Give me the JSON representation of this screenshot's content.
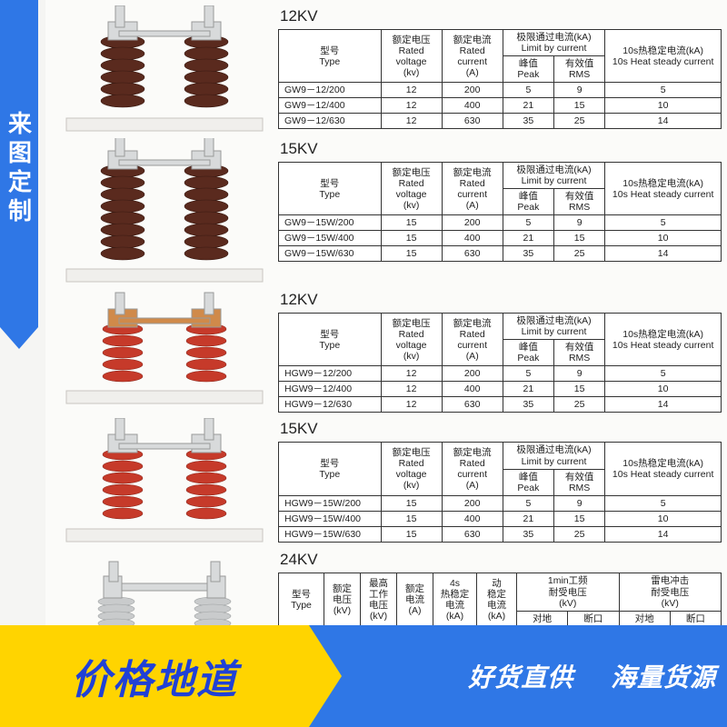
{
  "ribbon": {
    "text": "来图定制"
  },
  "palette": {
    "banner_yellow": "#ffd400",
    "banner_blue": "#2f77e6",
    "banner_text_blue": "#2041d6",
    "insulator_brown": "#5a2a1e",
    "insulator_red": "#c63a2a",
    "insulator_grey": "#c9cbcc",
    "hardware_silver": "#d8dadb",
    "hardware_copper": "#d08a4a",
    "base_white": "#f0efec",
    "border": "#333333",
    "page_bg": "#fbfbf9"
  },
  "common_headers": {
    "type": {
      "cn": "型号",
      "en": "Type"
    },
    "voltage": {
      "cn": "额定电压",
      "en": "Rated voltage",
      "unit": "(kv)"
    },
    "current": {
      "cn": "额定电流",
      "en": "Rated current",
      "unit": "(A)"
    },
    "limit": {
      "cn": "极限通过电流(kA)",
      "en": "Limit by current"
    },
    "peak": {
      "cn": "峰值",
      "en": "Peak"
    },
    "rms": {
      "cn": "有效值",
      "en": "RMS"
    },
    "heat": {
      "cn": "10s热稳定电流(kA)",
      "en": "10s Heat steady current"
    }
  },
  "sections": [
    {
      "title": "12KV",
      "image_style": "brown_porcelain_tall",
      "rows": [
        {
          "model": "GW9－12/200",
          "voltage": 12,
          "current": 200,
          "peak": 5,
          "rms": 9,
          "heat": 5
        },
        {
          "model": "GW9－12/400",
          "voltage": 12,
          "current": 400,
          "peak": 21,
          "rms": 15,
          "heat": 10
        },
        {
          "model": "GW9－12/630",
          "voltage": 12,
          "current": 630,
          "peak": 35,
          "rms": 25,
          "heat": 14
        }
      ]
    },
    {
      "title": "15KV",
      "image_style": "brown_porcelain_taller",
      "rows": [
        {
          "model": "GW9－15W/200",
          "voltage": 15,
          "current": 200,
          "peak": 5,
          "rms": 9,
          "heat": 5
        },
        {
          "model": "GW9－15W/400",
          "voltage": 15,
          "current": 400,
          "peak": 21,
          "rms": 15,
          "heat": 10
        },
        {
          "model": "GW9－15W/630",
          "voltage": 15,
          "current": 630,
          "peak": 35,
          "rms": 25,
          "heat": 14
        }
      ]
    },
    {
      "title": "12KV",
      "image_style": "red_polymer_short",
      "rows": [
        {
          "model": "HGW9－12/200",
          "voltage": 12,
          "current": 200,
          "peak": 5,
          "rms": 9,
          "heat": 5
        },
        {
          "model": "HGW9－12/400",
          "voltage": 12,
          "current": 400,
          "peak": 21,
          "rms": 15,
          "heat": 10
        },
        {
          "model": "HGW9－12/630",
          "voltage": 12,
          "current": 630,
          "peak": 35,
          "rms": 25,
          "heat": 14
        }
      ]
    },
    {
      "title": "15KV",
      "image_style": "red_polymer_tall",
      "rows": [
        {
          "model": "HGW9－15W/200",
          "voltage": 15,
          "current": 200,
          "peak": 5,
          "rms": 9,
          "heat": 5
        },
        {
          "model": "HGW9－15W/400",
          "voltage": 15,
          "current": 400,
          "peak": 21,
          "rms": 15,
          "heat": 10
        },
        {
          "model": "HGW9－15W/630",
          "voltage": 15,
          "current": 630,
          "peak": 35,
          "rms": 25,
          "heat": 14
        }
      ]
    }
  ],
  "section24": {
    "title": "24KV",
    "image_style": "grey_polymer",
    "headers": {
      "type": {
        "cn": "型号",
        "en": "Type"
      },
      "rated_v": {
        "cn": "额定",
        "cn2": "电压",
        "unit": "(kV)"
      },
      "max_v": {
        "cn": "最高",
        "cn2": "工作",
        "cn3": "电压",
        "unit": "(kV)"
      },
      "rated_a": {
        "cn": "额定",
        "cn2": "电流",
        "unit": "(A)"
      },
      "four_s": {
        "cn": "4s",
        "cn2": "热稳定",
        "cn3": "电流",
        "unit": "(kA)"
      },
      "dyn": {
        "cn": "动",
        "cn2": "稳定",
        "cn3": "电流",
        "unit": "(kA)"
      },
      "pf": {
        "cn": "1min工频",
        "cn2": "耐受电压",
        "unit": "(kV)"
      },
      "imp": {
        "cn": "雷电冲击",
        "cn2": "耐受电压",
        "unit": "(kV)"
      },
      "ground": "对地",
      "gap": "断口"
    }
  },
  "banner": {
    "left": "价格地道",
    "right_a": "好货直供",
    "right_b": "海量货源"
  }
}
